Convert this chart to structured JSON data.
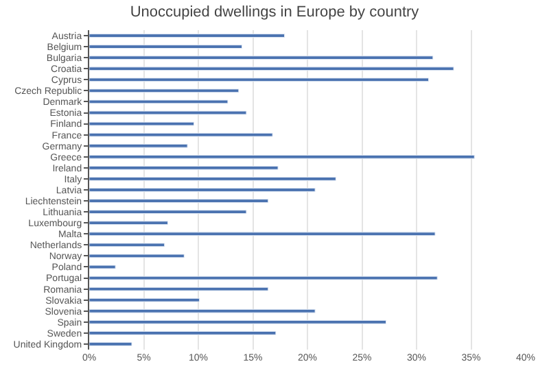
{
  "chart_data": {
    "type": "bar",
    "orientation": "horizontal",
    "title": "Unoccupied dwellings in Europe by country",
    "categories": [
      "Austria",
      "Belgium",
      "Bulgaria",
      "Croatia",
      "Cyprus",
      "Czech Republic",
      "Denmark",
      "Estonia",
      "Finland",
      "France",
      "Germany",
      "Greece",
      "Ireland",
      "Italy",
      "Latvia",
      "Liechtenstein",
      "Lithuania",
      "Luxembourg",
      "Malta",
      "Netherlands",
      "Norway",
      "Poland",
      "Portugal",
      "Romania",
      "Slovakia",
      "Slovenia",
      "Spain",
      "Sweden",
      "United Kingdom"
    ],
    "values": [
      17.9,
      14.0,
      31.5,
      33.4,
      31.1,
      13.7,
      12.7,
      14.4,
      9.6,
      16.8,
      9.0,
      35.3,
      17.3,
      22.6,
      20.7,
      16.4,
      14.4,
      7.2,
      31.7,
      6.9,
      8.7,
      2.4,
      31.9,
      16.4,
      10.1,
      20.7,
      27.2,
      17.1,
      3.9
    ],
    "color": "#4a72b0",
    "xlim": [
      0,
      40
    ],
    "xticks": [
      {
        "value": 0,
        "label": "0%"
      },
      {
        "value": 5,
        "label": "5%"
      },
      {
        "value": 10,
        "label": "10%"
      },
      {
        "value": 15,
        "label": "15%"
      },
      {
        "value": 20,
        "label": "20%"
      },
      {
        "value": 25,
        "label": "25%"
      },
      {
        "value": 30,
        "label": "30%"
      },
      {
        "value": 35,
        "label": "35%"
      },
      {
        "value": 40,
        "label": "40%"
      }
    ],
    "grid": "x",
    "legend": false
  }
}
